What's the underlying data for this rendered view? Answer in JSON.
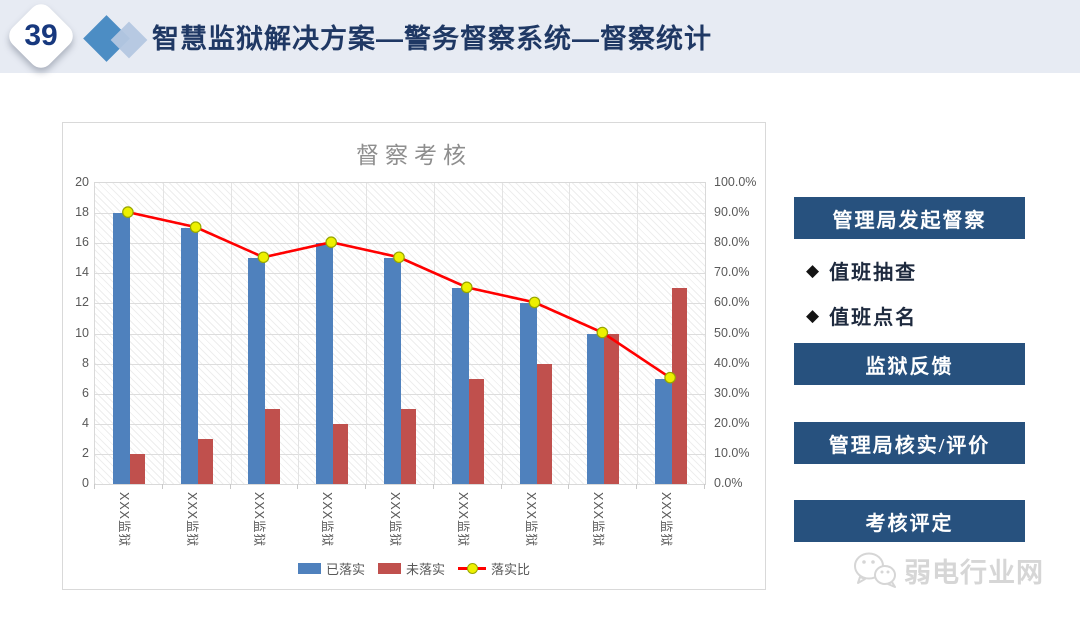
{
  "page": {
    "number": "39",
    "title": "智慧监狱解决方案—警务督察系统—督察统计"
  },
  "colors": {
    "header_bg": "#E7EBF3",
    "title_navy": "#1F3864",
    "button_navy": "#27517E",
    "bar_blue": "#4F81BD",
    "bar_red": "#C0504D",
    "line_red": "#FF0000",
    "marker_yellow": "#EDF000",
    "axis_gray": "#595959"
  },
  "chart_data": {
    "type": "bar",
    "subtype": "grouped-bars-with-line",
    "title": "督察考核",
    "categories": [
      "XXX监狱",
      "XXX监狱",
      "XXX监狱",
      "XXX监狱",
      "XXX监狱",
      "XXX监狱",
      "XXX监狱",
      "XXX监狱",
      "XXX监狱"
    ],
    "series": [
      {
        "name": "已落实",
        "type": "bar",
        "color": "#4F81BD",
        "axis": "left",
        "values": [
          18,
          17,
          15,
          16,
          15,
          13,
          12,
          10,
          7
        ]
      },
      {
        "name": "未落实",
        "type": "bar",
        "color": "#C0504D",
        "axis": "left",
        "values": [
          2,
          3,
          5,
          4,
          5,
          7,
          8,
          10,
          13
        ]
      },
      {
        "name": "落实比",
        "type": "line",
        "color": "#FF0000",
        "marker_color": "#EDF000",
        "axis": "right",
        "values": [
          90,
          85,
          75,
          80,
          75,
          65,
          60,
          50,
          35
        ]
      }
    ],
    "left_axis": {
      "min": 0,
      "max": 20,
      "step": 2,
      "ticks": [
        "0",
        "2",
        "4",
        "6",
        "8",
        "10",
        "12",
        "14",
        "16",
        "18",
        "20"
      ]
    },
    "right_axis": {
      "min": 0,
      "max": 100,
      "step": 10,
      "ticks": [
        "0.0%",
        "10.0%",
        "20.0%",
        "30.0%",
        "40.0%",
        "50.0%",
        "60.0%",
        "70.0%",
        "80.0%",
        "90.0%",
        "100.0%"
      ]
    },
    "grid": true,
    "legend_position": "bottom"
  },
  "right_panel": {
    "items": [
      {
        "type": "button",
        "label": "管理局发起督察"
      },
      {
        "type": "bullet",
        "label": "值班抽查"
      },
      {
        "type": "bullet",
        "label": "值班点名"
      },
      {
        "type": "button",
        "label": "监狱反馈"
      },
      {
        "type": "button",
        "label": "管理局核实/评价"
      },
      {
        "type": "button",
        "label": "考核评定"
      }
    ]
  },
  "watermark": {
    "icon": "wechat-icon",
    "label": "弱电行业网"
  }
}
